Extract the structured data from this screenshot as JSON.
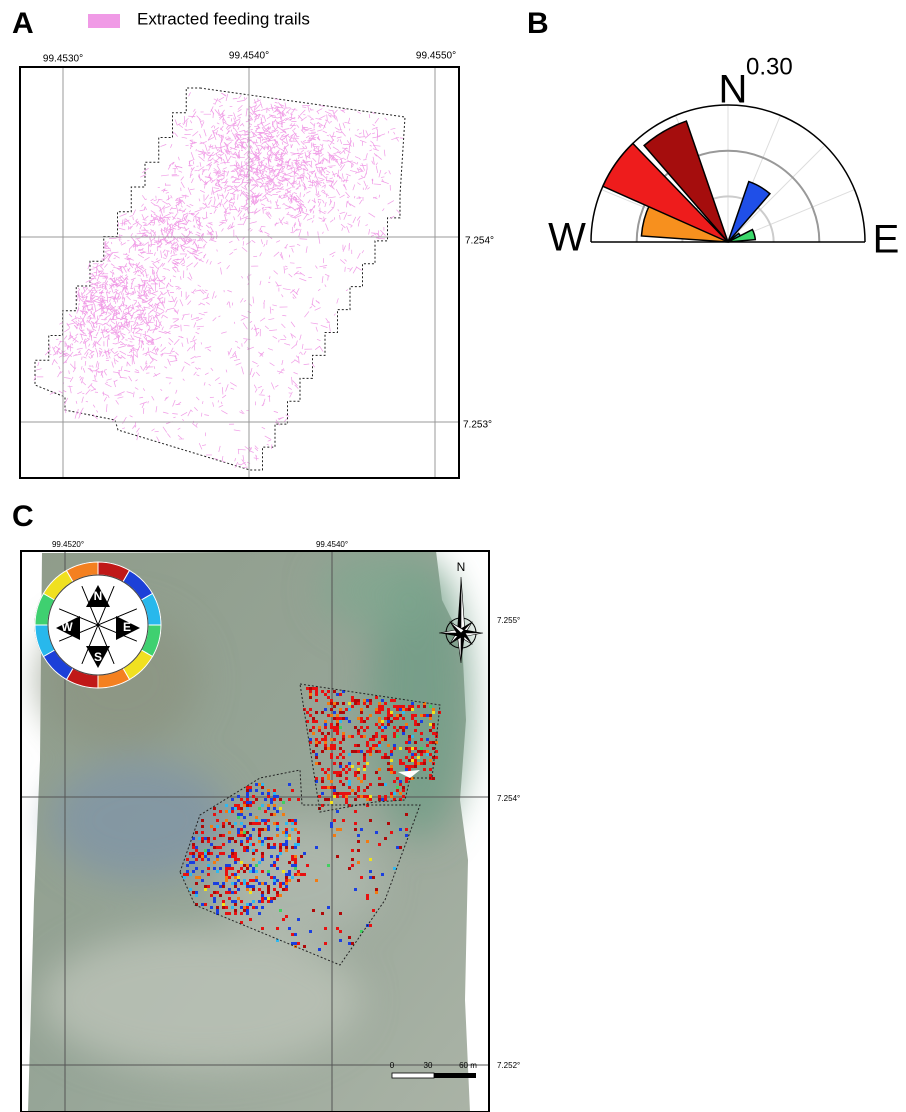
{
  "panel_a": {
    "label": "A",
    "legend": "Extracted feeding trails",
    "trail_color": "#f09ae6",
    "lon_labels": [
      "99.4530°",
      "99.4540°",
      "99.4550°"
    ],
    "lat_labels": [
      "7.254°",
      "7.253°"
    ]
  },
  "chart_data": {
    "type": "rose",
    "panel_label": "B",
    "direction_labels": {
      "north": "N",
      "west": "W",
      "east": "E"
    },
    "rlim": [
      0,
      0.3
    ],
    "rticks": [
      {
        "value": 0.1,
        "label": null
      },
      {
        "value": 0.2,
        "label": null
      },
      {
        "value": 0.3,
        "label": "0.30"
      }
    ],
    "directions": [
      -75,
      -55,
      -30,
      30,
      62,
      74
    ],
    "values": [
      0.19,
      0.3,
      0.28,
      0.14,
      0.03,
      0.06
    ],
    "colors": [
      "#f7901e",
      "#ee1c1c",
      "#a50d0d",
      "#1f4fe8",
      "#22b0e8",
      "#3bd96b"
    ]
  },
  "panel_c": {
    "label": "C",
    "lon_labels": [
      "99.4520°",
      "99.4540°"
    ],
    "lat_labels": [
      "7.255°",
      "7.254°",
      "7.252°"
    ],
    "wheel_labels": [
      "N",
      "E",
      "S",
      "W"
    ],
    "north_arrow": "N",
    "scale_bar": [
      "0",
      "30",
      "60 m"
    ]
  }
}
